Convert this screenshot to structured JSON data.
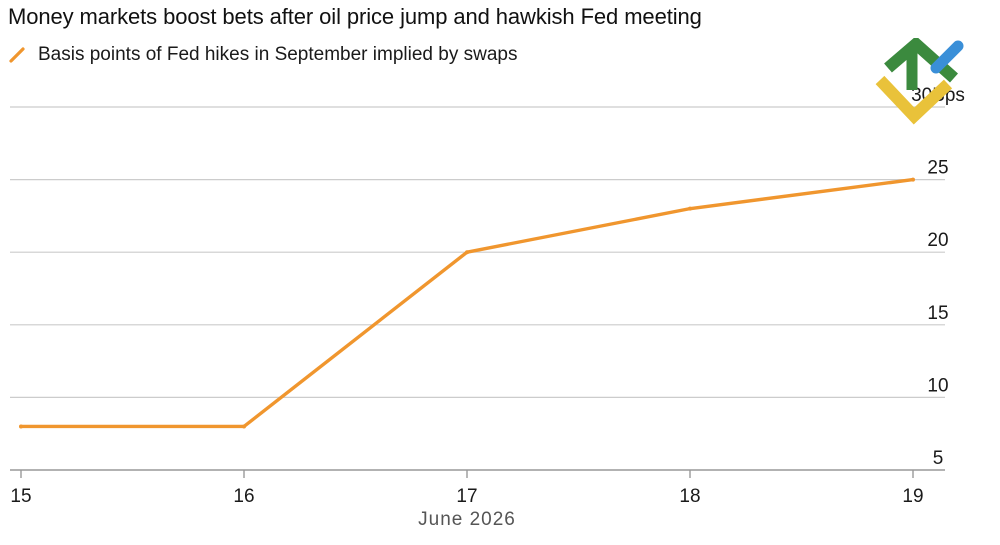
{
  "header": {
    "title": "Money markets boost bets after oil price jump and hawkish Fed meeting"
  },
  "colors": {
    "series": "#f0962e",
    "grid": "#cccccc",
    "axis": "#999999",
    "logo_green": "#3b8a3e",
    "logo_yellow": "#e9c23a",
    "logo_blue": "#3a8fd8"
  },
  "logo": {
    "icon": "brand-logo-icon"
  },
  "chart_data": {
    "type": "line",
    "title": "Money markets boost bets after oil price jump and hawkish Fed meeting",
    "xlabel": "June 2026",
    "ylabel": "",
    "y_unit": "Bps",
    "x": [
      "2026-06-15",
      "2026-06-16",
      "2026-06-17",
      "2026-06-18",
      "2026-06-19"
    ],
    "x_tick_labels": [
      "15",
      "16",
      "17",
      "18",
      "19"
    ],
    "series": [
      {
        "name": "Basis points of Fed hikes in September implied by swaps",
        "values": [
          8,
          8,
          20,
          23,
          25
        ]
      }
    ],
    "y_ticks": [
      5,
      10,
      15,
      20,
      25,
      30
    ],
    "y_tick_labels": [
      "5",
      "10",
      "15",
      "20",
      "25",
      "30Bps"
    ],
    "ylim": [
      5,
      30
    ],
    "grid": true,
    "legend_position": "top-left"
  }
}
